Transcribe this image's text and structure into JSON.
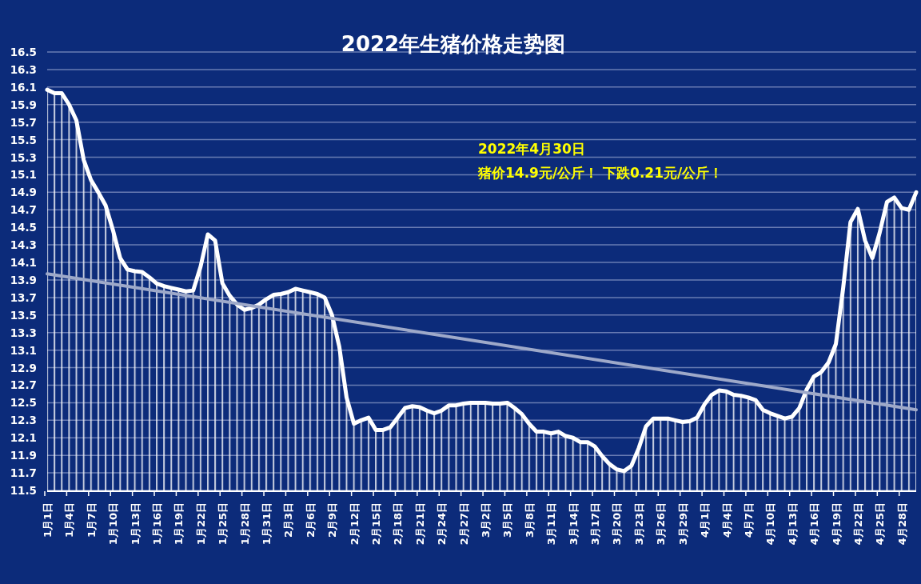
{
  "chart_data": {
    "type": "area",
    "title": "2022年生猪价格走势图",
    "annotations": [
      "2022年4月30日",
      "猪价14.9元/公斤！ 下跌0.21元/公斤！"
    ],
    "xlim": [
      "--01-01",
      "--04-30"
    ],
    "xticks": [
      {
        "value": "--01-01",
        "label": "1月1日"
      },
      {
        "value": "--01-04",
        "label": "1月4日"
      },
      {
        "value": "--01-07",
        "label": "1月7日"
      },
      {
        "value": "--01-10",
        "label": "1月10日"
      },
      {
        "value": "--01-13",
        "label": "1月13日"
      },
      {
        "value": "--01-16",
        "label": "1月16日"
      },
      {
        "value": "--01-19",
        "label": "1月19日"
      },
      {
        "value": "--01-22",
        "label": "1月22日"
      },
      {
        "value": "--01-25",
        "label": "1月25日"
      },
      {
        "value": "--01-28",
        "label": "1月28日"
      },
      {
        "value": "--01-31",
        "label": "1月31日"
      },
      {
        "value": "--02-03",
        "label": "2月3日"
      },
      {
        "value": "--02-06",
        "label": "2月6日"
      },
      {
        "value": "--02-09",
        "label": "2月9日"
      },
      {
        "value": "--02-12",
        "label": "2月12日"
      },
      {
        "value": "--02-15",
        "label": "2月15日"
      },
      {
        "value": "--02-18",
        "label": "2月18日"
      },
      {
        "value": "--02-21",
        "label": "2月21日"
      },
      {
        "value": "--02-24",
        "label": "2月24日"
      },
      {
        "value": "--02-27",
        "label": "2月27日"
      },
      {
        "value": "--03-02",
        "label": "3月2日"
      },
      {
        "value": "--03-05",
        "label": "3月5日"
      },
      {
        "value": "--03-08",
        "label": "3月8日"
      },
      {
        "value": "--03-11",
        "label": "3月11日"
      },
      {
        "value": "--03-14",
        "label": "3月14日"
      },
      {
        "value": "--03-17",
        "label": "3月17日"
      },
      {
        "value": "--03-20",
        "label": "3月20日"
      },
      {
        "value": "--03-23",
        "label": "3月23日"
      },
      {
        "value": "--03-26",
        "label": "3月26日"
      },
      {
        "value": "--03-29",
        "label": "3月29日"
      },
      {
        "value": "--04-01",
        "label": "4月1日"
      },
      {
        "value": "--04-04",
        "label": "4月4日"
      },
      {
        "value": "--04-07",
        "label": "4月7日"
      },
      {
        "value": "--04-10",
        "label": "4月10日"
      },
      {
        "value": "--04-13",
        "label": "4月13日"
      },
      {
        "value": "--04-16",
        "label": "4月16日"
      },
      {
        "value": "--04-19",
        "label": "4月19日"
      },
      {
        "value": "--04-22",
        "label": "4月22日"
      },
      {
        "value": "--04-25",
        "label": "4月25日"
      },
      {
        "value": "--04-28",
        "label": "4月28日"
      }
    ],
    "ylim": [
      11.5,
      16.5
    ],
    "yticks": [
      11.5,
      11.7,
      11.9,
      12.1,
      12.3,
      12.5,
      12.7,
      12.9,
      13.1,
      13.3,
      13.5,
      13.7,
      13.9,
      14.1,
      14.3,
      14.5,
      14.7,
      14.9,
      15.1,
      15.3,
      15.5,
      15.7,
      15.9,
      16.1,
      16.3,
      16.5
    ],
    "grid": "y",
    "series": [
      {
        "type": "area",
        "color": "#ffffff",
        "x": [
          "--01-01",
          "--01-02",
          "--01-03",
          "--01-04",
          "--01-05",
          "--01-06",
          "--01-07",
          "--01-08",
          "--01-09",
          "--01-10",
          "--01-11",
          "--01-12",
          "--01-13",
          "--01-14",
          "--01-15",
          "--01-16",
          "--01-17",
          "--01-18",
          "--01-19",
          "--01-20",
          "--01-21",
          "--01-22",
          "--01-23",
          "--01-24",
          "--01-25",
          "--01-26",
          "--01-27",
          "--01-28",
          "--01-29",
          "--01-30",
          "--01-31",
          "--02-01",
          "--02-02",
          "--02-03",
          "--02-04",
          "--02-05",
          "--02-06",
          "--02-07",
          "--02-08",
          "--02-09",
          "--02-10",
          "--02-11",
          "--02-12",
          "--02-13",
          "--02-14",
          "--02-15",
          "--02-16",
          "--02-17",
          "--02-18",
          "--02-19",
          "--02-20",
          "--02-21",
          "--02-22",
          "--02-23",
          "--02-24",
          "--02-25",
          "--02-26",
          "--02-27",
          "--02-28",
          "--03-01",
          "--03-02",
          "--03-03",
          "--03-04",
          "--03-05",
          "--03-06",
          "--03-07",
          "--03-08",
          "--03-09",
          "--03-10",
          "--03-11",
          "--03-12",
          "--03-13",
          "--03-14",
          "--03-15",
          "--03-16",
          "--03-17",
          "--03-18",
          "--03-19",
          "--03-20",
          "--03-21",
          "--03-22",
          "--03-23",
          "--03-24",
          "--03-25",
          "--03-26",
          "--03-27",
          "--03-28",
          "--03-29",
          "--03-30",
          "--03-31",
          "--04-01",
          "--04-02",
          "--04-03",
          "--04-04",
          "--04-05",
          "--04-06",
          "--04-07",
          "--04-08",
          "--04-09",
          "--04-10",
          "--04-11",
          "--04-12",
          "--04-13",
          "--04-14",
          "--04-15",
          "--04-16",
          "--04-17",
          "--04-18",
          "--04-19",
          "--04-20",
          "--04-21",
          "--04-22",
          "--04-23",
          "--04-24",
          "--04-25",
          "--04-26",
          "--04-27",
          "--04-28",
          "--04-29",
          "--04-30"
        ],
        "values": [
          16.07,
          16.03,
          16.03,
          15.9,
          15.72,
          15.27,
          15.04,
          14.9,
          14.75,
          14.47,
          14.15,
          14.02,
          14.0,
          13.99,
          13.93,
          13.86,
          13.83,
          13.81,
          13.79,
          13.77,
          13.78,
          14.05,
          14.42,
          14.35,
          13.86,
          13.72,
          13.62,
          13.56,
          13.58,
          13.62,
          13.68,
          13.73,
          13.74,
          13.76,
          13.8,
          13.78,
          13.76,
          13.74,
          13.7,
          13.5,
          13.14,
          12.56,
          12.26,
          12.3,
          12.33,
          12.19,
          12.19,
          12.22,
          12.33,
          12.44,
          12.46,
          12.45,
          12.41,
          12.38,
          12.41,
          12.47,
          12.47,
          12.49,
          12.5,
          12.5,
          12.5,
          12.49,
          12.49,
          12.5,
          12.44,
          12.37,
          12.26,
          12.17,
          12.17,
          12.15,
          12.17,
          12.12,
          12.1,
          12.05,
          12.05,
          12.0,
          11.89,
          11.8,
          11.74,
          11.72,
          11.78,
          11.98,
          12.23,
          12.32,
          12.32,
          12.32,
          12.3,
          12.28,
          12.29,
          12.33,
          12.48,
          12.59,
          12.64,
          12.63,
          12.59,
          12.58,
          12.56,
          12.53,
          12.42,
          12.38,
          12.35,
          12.32,
          12.34,
          12.44,
          12.65,
          12.8,
          12.85,
          12.96,
          13.17,
          13.81,
          14.56,
          14.71,
          14.35,
          14.15,
          14.44,
          14.79,
          14.84,
          14.72,
          14.7,
          14.9
        ]
      },
      {
        "type": "line",
        "color": "#9ea9c9",
        "x": [
          "--01-01",
          "--04-30"
        ],
        "values": [
          13.97,
          12.42
        ]
      }
    ]
  }
}
